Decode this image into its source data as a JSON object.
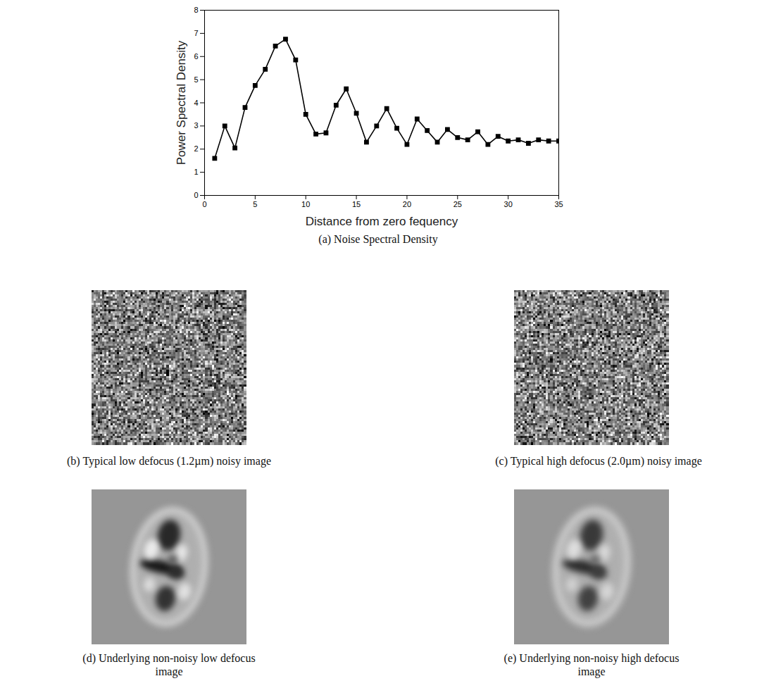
{
  "chart_data": {
    "type": "line",
    "title": "(a) Noise Spectral Density",
    "xlabel": "Distance from zero fequency",
    "ylabel": "Power Spectral Density",
    "x": [
      1,
      2,
      3,
      4,
      5,
      6,
      7,
      8,
      9,
      10,
      11,
      12,
      13,
      14,
      15,
      16,
      17,
      18,
      19,
      20,
      21,
      22,
      23,
      24,
      25,
      26,
      27,
      28,
      29,
      30,
      31,
      32,
      33,
      34,
      35
    ],
    "values": [
      1.6,
      3.0,
      2.05,
      3.8,
      4.75,
      5.45,
      6.45,
      6.75,
      5.85,
      3.5,
      2.65,
      2.7,
      3.9,
      4.6,
      3.55,
      2.3,
      3.0,
      3.75,
      2.9,
      2.2,
      3.3,
      2.8,
      2.3,
      2.85,
      2.5,
      2.4,
      2.75,
      2.2,
      2.55,
      2.35,
      2.4,
      2.25,
      2.4,
      2.35,
      2.35
    ],
    "color": "#000000",
    "marker": "square",
    "xlim": [
      0,
      35
    ],
    "ylim": [
      0,
      8
    ],
    "xticks": [
      0,
      5,
      10,
      15,
      20,
      25,
      30,
      35
    ],
    "yticks": [
      0,
      1,
      2,
      3,
      4,
      5,
      6,
      7,
      8
    ],
    "grid": false
  },
  "images": [
    {
      "caption": "(b) Typical low defocus (1.2µm) noisy image"
    },
    {
      "caption": "(c) Typical high defocus (2.0µm) noisy image"
    },
    {
      "caption": "(d) Underlying non-noisy low defocus image"
    },
    {
      "caption": "(e) Underlying non-noisy high defocus image"
    }
  ]
}
